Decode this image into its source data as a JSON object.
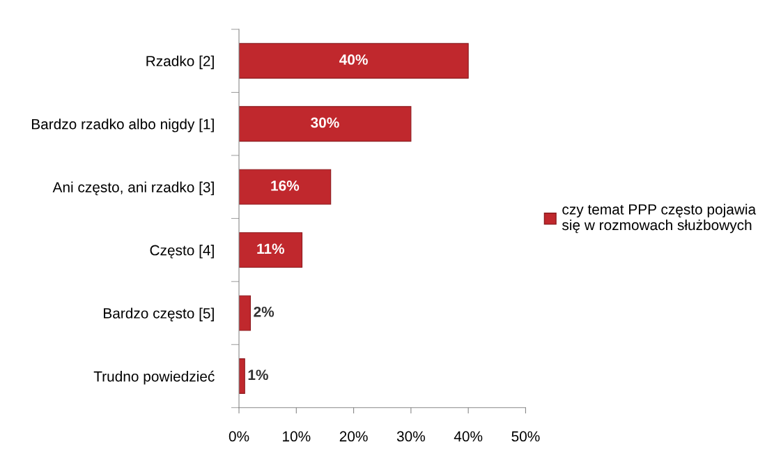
{
  "chart_data": {
    "type": "bar",
    "orientation": "horizontal",
    "categories": [
      "Rzadko [2]",
      "Bardzo rzadko albo nigdy [1]",
      "Ani często, ani rzadko [3]",
      "Często [4]",
      "Bardzo często [5]",
      "Trudno powiedzieć"
    ],
    "series": [
      {
        "name": "czy temat PPP często pojawia się w rozmowach służbowych",
        "color": "#c0282d",
        "values": [
          40,
          30,
          16,
          11,
          2,
          1
        ],
        "value_labels": [
          "40%",
          "30%",
          "16%",
          "11%",
          "2%",
          "1%"
        ]
      }
    ],
    "xlim": [
      0,
      50
    ],
    "xticks": [
      {
        "value": 0,
        "label": "0%"
      },
      {
        "value": 10,
        "label": "10%"
      },
      {
        "value": 20,
        "label": "20%"
      },
      {
        "value": 30,
        "label": "30%"
      },
      {
        "value": 40,
        "label": "40%"
      },
      {
        "value": 50,
        "label": "50%"
      }
    ],
    "grid": false,
    "legend": "right"
  }
}
